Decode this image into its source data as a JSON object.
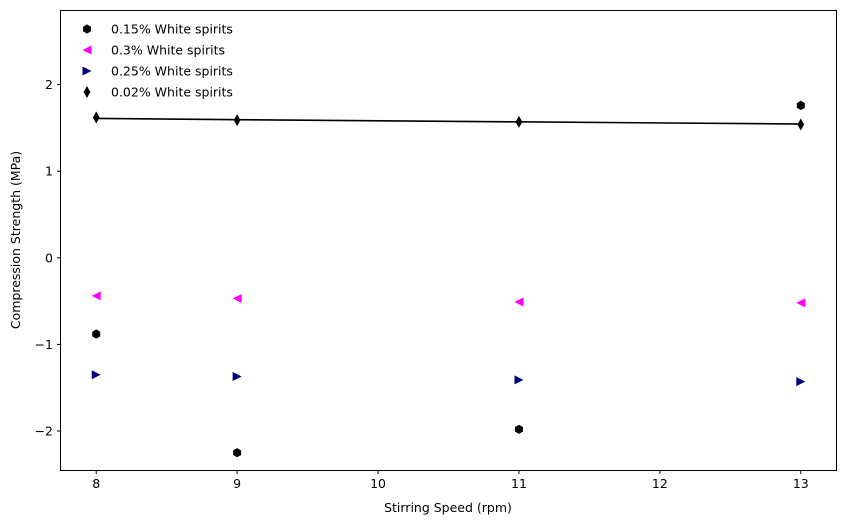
{
  "chart_data": {
    "type": "scatter",
    "title": "",
    "xlabel": "Stirring Speed (rpm)",
    "ylabel": "Compression Strength (MPa)",
    "xlim": [
      7.75,
      13.25
    ],
    "ylim": [
      -2.45,
      2.85
    ],
    "xticks": [
      8,
      9,
      10,
      11,
      12,
      13
    ],
    "yticks": [
      -2,
      -1,
      0,
      1,
      2
    ],
    "grid": false,
    "legend_position": "top-left",
    "series": [
      {
        "name": "0.15% White spirits",
        "marker": "hexagon",
        "color": "#000000",
        "x": [
          8,
          9,
          11,
          13
        ],
        "y": [
          -0.88,
          -2.25,
          -1.98,
          1.76
        ]
      },
      {
        "name": "0.3% White spirits",
        "marker": "triangle-left",
        "color": "#ff00ff",
        "x": [
          8,
          9,
          11,
          13
        ],
        "y": [
          -0.44,
          -0.47,
          -0.51,
          -0.52
        ]
      },
      {
        "name": "0.25% White spirits",
        "marker": "triangle-right",
        "color": "#00007f",
        "x": [
          8,
          9,
          11,
          13
        ],
        "y": [
          -1.35,
          -1.37,
          -1.41,
          -1.43
        ]
      },
      {
        "name": "0.02% White spirits",
        "marker": "thin-diamond",
        "color": "#000000",
        "x": [
          8,
          9,
          11,
          13
        ],
        "y": [
          1.62,
          1.59,
          1.57,
          1.54
        ]
      }
    ],
    "trend_line": {
      "color": "#000000",
      "x": [
        8,
        9,
        11,
        13
      ],
      "y": [
        1.61,
        1.595,
        1.57,
        1.545
      ]
    }
  }
}
